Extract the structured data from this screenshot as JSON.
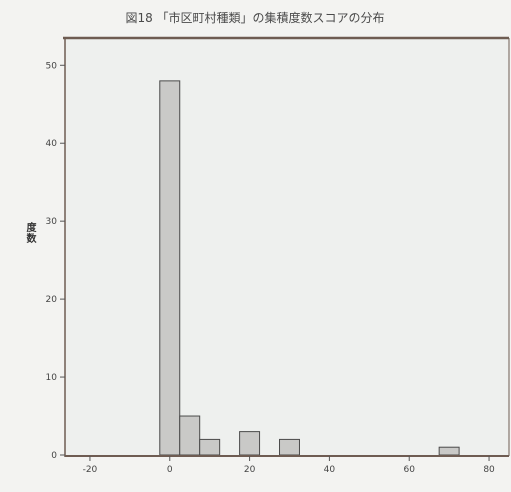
{
  "chart_data": {
    "type": "bar",
    "subtype": "histogram",
    "title": "図18 「市区町村種類」の集積度数スコアの分布",
    "xlabel": "",
    "ylabel": "度数",
    "x_ticks": [
      -20,
      0,
      20,
      40,
      60,
      80
    ],
    "y_ticks": [
      0,
      10,
      20,
      30,
      40,
      50
    ],
    "xlim": [
      -26.25,
      85
    ],
    "ylim": [
      0,
      53.5
    ],
    "bin_width": 5,
    "x": [
      0,
      5,
      10,
      20,
      30,
      70
    ],
    "values": [
      48,
      5,
      2,
      3,
      2,
      1
    ],
    "grid": false,
    "colors": {
      "bar_fill": "#c9c9c7",
      "bar_stroke": "#4a4a4a",
      "frame": "#6e5c52",
      "plot_bg": "#eef0ee"
    }
  }
}
